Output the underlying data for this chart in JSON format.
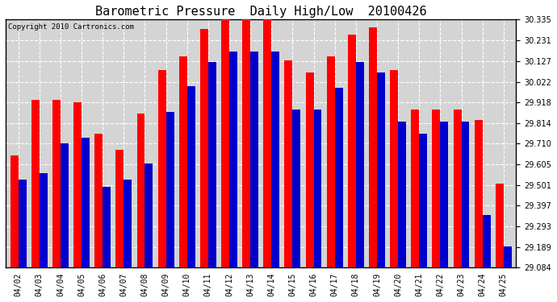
{
  "title": "Barometric Pressure  Daily High/Low  20100426",
  "copyright": "Copyright 2010 Cartronics.com",
  "dates": [
    "04/02",
    "04/03",
    "04/04",
    "04/05",
    "04/06",
    "04/07",
    "04/08",
    "04/09",
    "04/10",
    "04/11",
    "04/12",
    "04/13",
    "04/14",
    "04/15",
    "04/16",
    "04/17",
    "04/18",
    "04/19",
    "04/20",
    "04/21",
    "04/22",
    "04/23",
    "04/24",
    "04/25"
  ],
  "highs": [
    29.65,
    29.93,
    29.93,
    29.92,
    29.76,
    29.68,
    29.86,
    30.08,
    30.15,
    30.29,
    30.34,
    30.34,
    30.34,
    30.13,
    30.07,
    30.15,
    30.26,
    30.295,
    30.08,
    29.88,
    29.88,
    29.88,
    29.83,
    29.51
  ],
  "lows": [
    29.53,
    29.56,
    29.71,
    29.74,
    29.49,
    29.53,
    29.61,
    29.87,
    30.0,
    30.12,
    30.175,
    30.175,
    30.175,
    29.88,
    29.88,
    29.99,
    30.12,
    30.07,
    29.82,
    29.76,
    29.82,
    29.82,
    29.35,
    29.19
  ],
  "high_color": "#ff0000",
  "low_color": "#0000cc",
  "bg_color": "#ffffff",
  "plot_bg_color": "#d4d4d4",
  "grid_color": "#ffffff",
  "yticks": [
    29.084,
    29.189,
    29.293,
    29.397,
    29.501,
    29.605,
    29.71,
    29.814,
    29.918,
    30.022,
    30.127,
    30.231,
    30.335
  ],
  "ymin": 29.084,
  "ymax": 30.335,
  "bar_width": 0.38,
  "title_fontsize": 11,
  "tick_fontsize": 7,
  "copyright_fontsize": 6.5
}
